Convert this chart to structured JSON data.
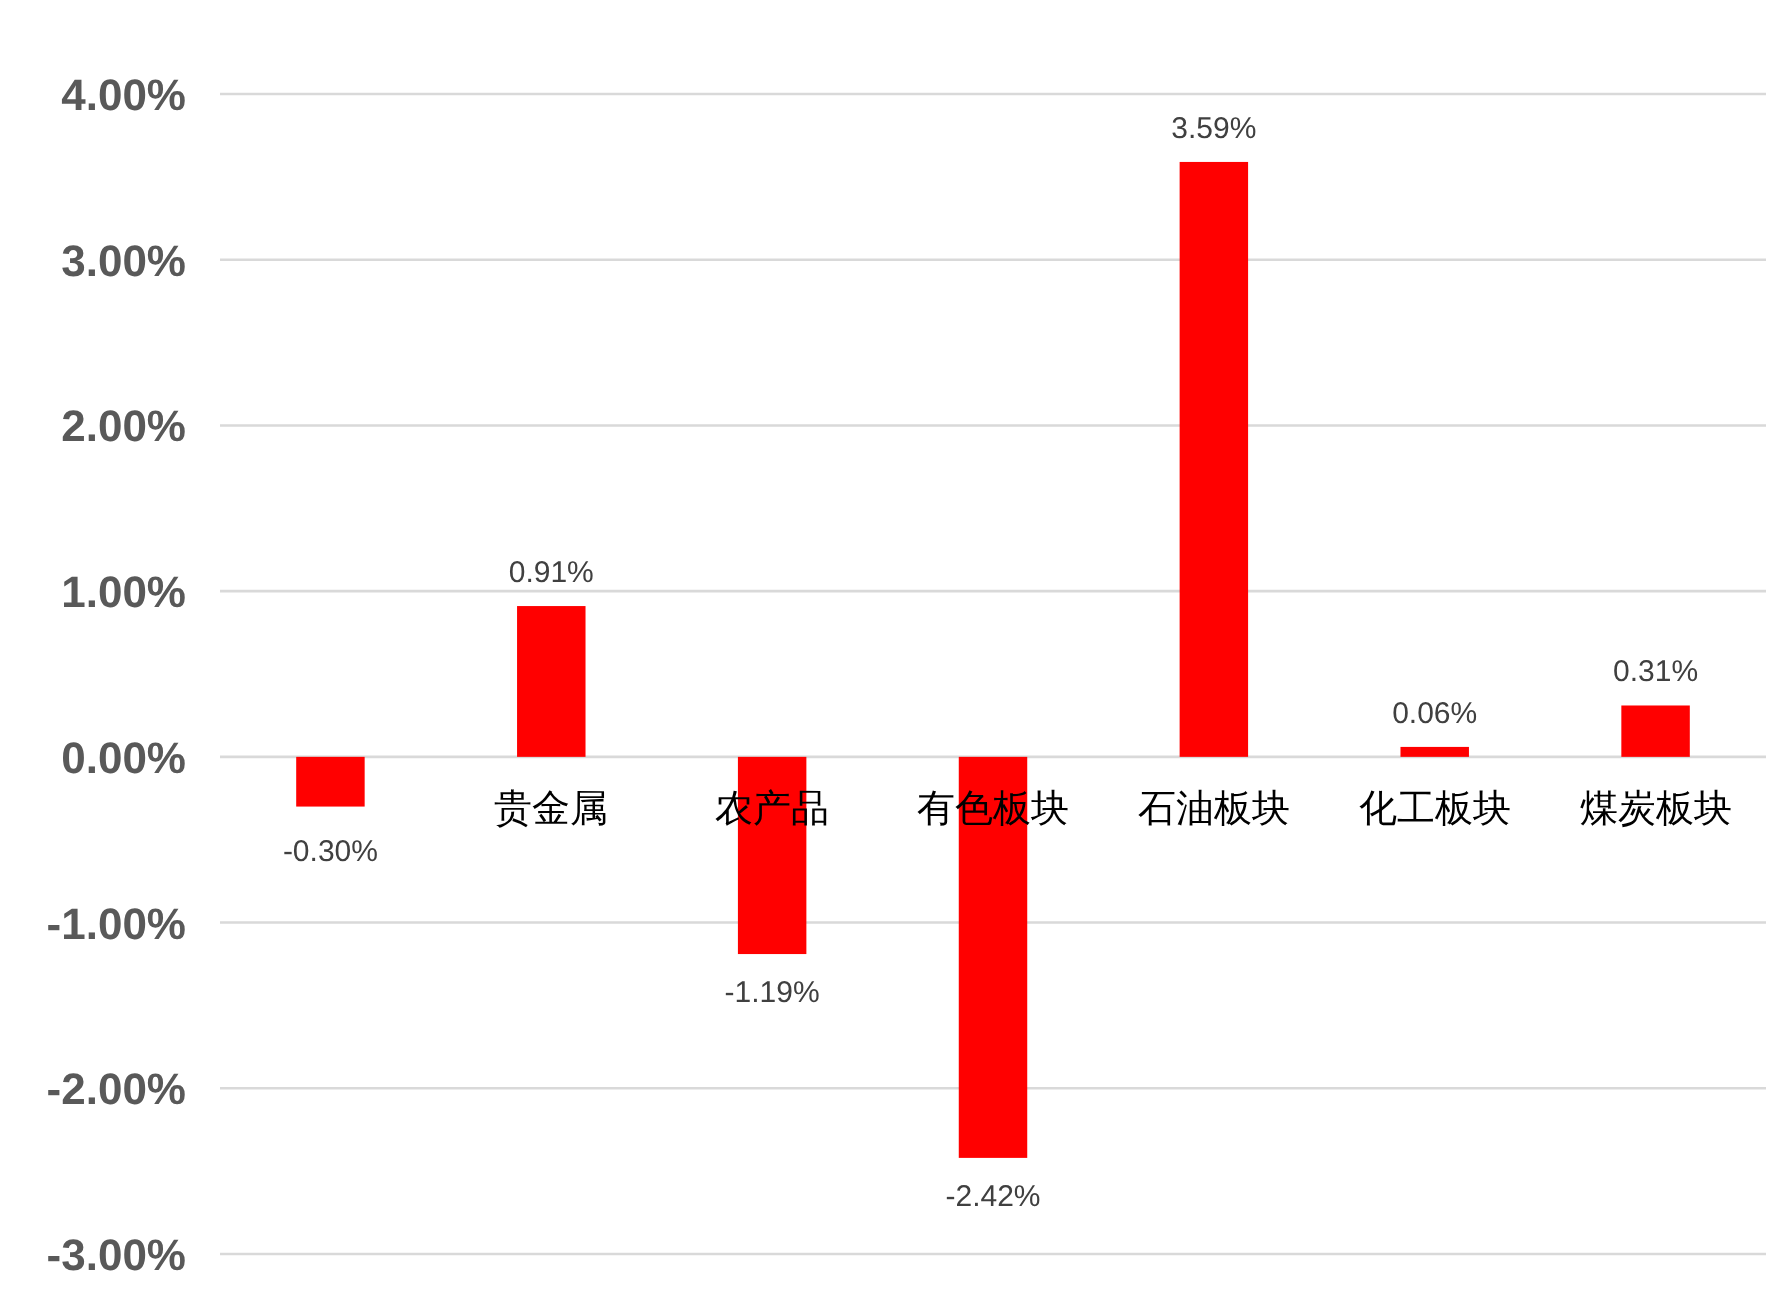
{
  "chart_data": {
    "type": "bar",
    "categories": [
      null,
      "贵金属",
      "农产品",
      "有色板块",
      "石油板块",
      "化工板块",
      "煤炭板块"
    ],
    "values": [
      -0.3,
      0.91,
      -1.19,
      -2.42,
      3.59,
      0.06,
      0.31
    ],
    "value_labels": [
      "-0.30%",
      "0.91%",
      "-1.19%",
      "-2.42%",
      "3.59%",
      "0.06%",
      "0.31%"
    ],
    "color": "#ff0000",
    "ylim": [
      -3,
      4
    ],
    "yticks": [
      {
        "value": -3,
        "label": "-3.00%"
      },
      {
        "value": -2,
        "label": "-2.00%"
      },
      {
        "value": -1,
        "label": "-1.00%"
      },
      {
        "value": 0,
        "label": "0.00%"
      },
      {
        "value": 1,
        "label": "1.00%"
      },
      {
        "value": 2,
        "label": "2.00%"
      },
      {
        "value": 3,
        "label": "3.00%"
      },
      {
        "value": 4,
        "label": "4.00%"
      }
    ],
    "grid": "y"
  }
}
